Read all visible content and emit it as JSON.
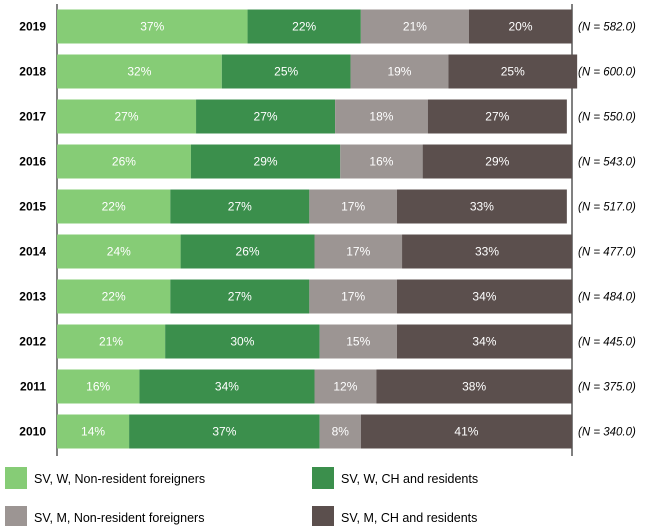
{
  "chart_data": {
    "type": "bar",
    "orientation": "horizontal-stacked-100",
    "categories": [
      "2019",
      "2018",
      "2017",
      "2016",
      "2015",
      "2014",
      "2013",
      "2012",
      "2011",
      "2010"
    ],
    "n_labels": [
      "(N = 582.0)",
      "(N = 600.0)",
      "(N = 550.0)",
      "(N = 543.0)",
      "(N = 517.0)",
      "(N = 477.0)",
      "(N = 484.0)",
      "(N = 445.0)",
      "(N = 375.0)",
      "(N = 340.0)"
    ],
    "series": [
      {
        "name": "SV, W, Non-resident foreigners",
        "color": "#86cc76",
        "values": [
          37,
          32,
          27,
          26,
          22,
          24,
          22,
          21,
          16,
          14
        ]
      },
      {
        "name": "SV, W, CH and residents",
        "color": "#3b8f4c",
        "values": [
          22,
          25,
          27,
          29,
          27,
          26,
          27,
          30,
          34,
          37
        ]
      },
      {
        "name": "SV, M, Non-resident foreigners",
        "color": "#9c9593",
        "values": [
          21,
          19,
          18,
          16,
          17,
          17,
          17,
          15,
          12,
          8
        ]
      },
      {
        "name": "SV, M, CH and residents",
        "color": "#5b4f4d",
        "values": [
          20,
          25,
          27,
          29,
          33,
          33,
          34,
          34,
          38,
          41
        ]
      }
    ],
    "value_suffix": "%",
    "xlim": [
      0,
      100
    ],
    "grid": false,
    "legend": "bottom"
  }
}
